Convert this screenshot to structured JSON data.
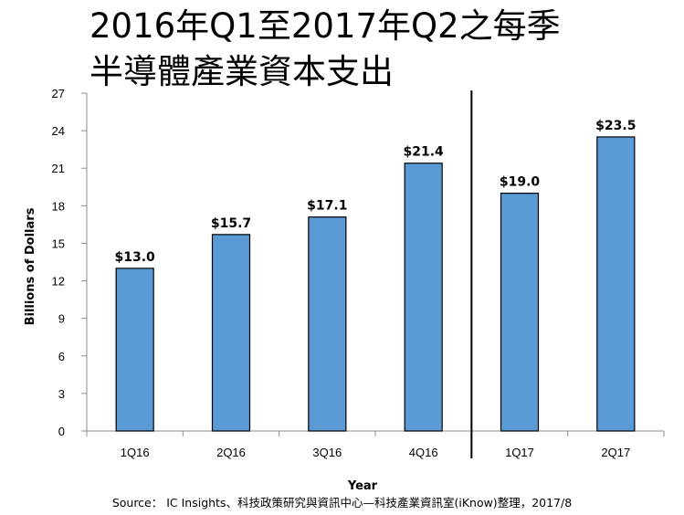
{
  "title_lines": [
    "2016年Q1至2017年Q2之每季",
    "半導體產業資本支出"
  ],
  "source": "Source： IC Insights、科技政策研究與資訊中心—科技產業資訊室(iKnow)整理，2017/8",
  "chart_data": {
    "type": "bar",
    "title": "2016年Q1至2017年Q2之每季半導體產業資本支出",
    "categories": [
      "1Q16",
      "2Q16",
      "3Q16",
      "4Q16",
      "1Q17",
      "2Q17"
    ],
    "series": [
      {
        "values": [
          13.0,
          15.7,
          17.1,
          21.4,
          19.0,
          23.5
        ],
        "labels": [
          "$13.0",
          "$15.7",
          "$17.1",
          "$21.4",
          "$19.0",
          "$23.5"
        ]
      }
    ],
    "xlabel": "Year",
    "ylabel": "Billions of Dollars",
    "ylim": [
      0,
      27
    ],
    "yticks": [
      0,
      3,
      6,
      9,
      12,
      15,
      18,
      21,
      24,
      27
    ],
    "grid": false,
    "legend": "none",
    "separator_between": [
      "4Q16",
      "1Q17"
    ],
    "bar_color": "#5b9bd5",
    "bar_edge_color": "#000000"
  }
}
